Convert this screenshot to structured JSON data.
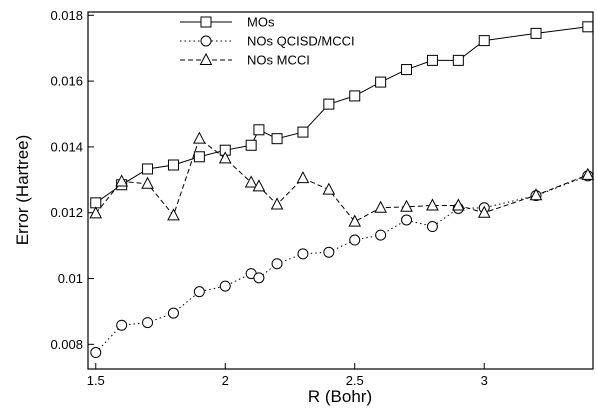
{
  "chart_data": {
    "type": "line",
    "title": "",
    "xlabel": "R (Bohr)",
    "ylabel": "Error (Hartree)",
    "xlim": [
      1.47,
      3.42
    ],
    "ylim": [
      0.00725,
      0.0181
    ],
    "xticks": [
      1.5,
      2,
      2.5,
      3
    ],
    "xtick_labels": [
      "1.5",
      "2",
      "2.5",
      "3"
    ],
    "yticks": [
      0.008,
      0.01,
      0.012,
      0.014,
      0.016,
      0.018
    ],
    "ytick_labels": [
      "0.008",
      "0.01",
      "0.012",
      "0.014",
      "0.016",
      "0.018"
    ],
    "grid": false,
    "legend": "top-center",
    "series": [
      {
        "name": "MOs",
        "marker": "square",
        "dash": "solid",
        "x": [
          1.5,
          1.6,
          1.7,
          1.8,
          1.9,
          2.0,
          2.1,
          2.13,
          2.2,
          2.3,
          2.4,
          2.5,
          2.6,
          2.7,
          2.8,
          2.9,
          3.0,
          3.2,
          3.4
        ],
        "y": [
          0.0123,
          0.01285,
          0.01333,
          0.01345,
          0.0137,
          0.0139,
          0.01405,
          0.01452,
          0.01425,
          0.01445,
          0.0153,
          0.01555,
          0.01597,
          0.01635,
          0.01663,
          0.01663,
          0.01723,
          0.01745,
          0.01765
        ]
      },
      {
        "name": "NOs QCISD/MCCI",
        "marker": "circle",
        "dash": "dotted",
        "x": [
          1.5,
          1.6,
          1.7,
          1.8,
          1.9,
          2.0,
          2.1,
          2.13,
          2.2,
          2.3,
          2.4,
          2.5,
          2.6,
          2.7,
          2.8,
          2.9,
          3.0,
          3.2,
          3.4
        ],
        "y": [
          0.00775,
          0.00858,
          0.00866,
          0.00895,
          0.0096,
          0.00977,
          0.01015,
          0.01002,
          0.01045,
          0.01075,
          0.0108,
          0.01117,
          0.01132,
          0.01178,
          0.01158,
          0.01213,
          0.01215,
          0.01252,
          0.01312
        ]
      },
      {
        "name": "NOs MCCI",
        "marker": "triangle",
        "dash": "dashed",
        "x": [
          1.5,
          1.6,
          1.7,
          1.8,
          1.9,
          2.0,
          2.1,
          2.13,
          2.2,
          2.3,
          2.4,
          2.5,
          2.6,
          2.7,
          2.8,
          2.9,
          3.0,
          3.2,
          3.4
        ],
        "y": [
          0.01198,
          0.01295,
          0.01288,
          0.01192,
          0.01425,
          0.01365,
          0.01292,
          0.0128,
          0.01225,
          0.01305,
          0.0127,
          0.01173,
          0.01215,
          0.01218,
          0.01222,
          0.01222,
          0.012,
          0.01253,
          0.01315
        ]
      }
    ]
  }
}
